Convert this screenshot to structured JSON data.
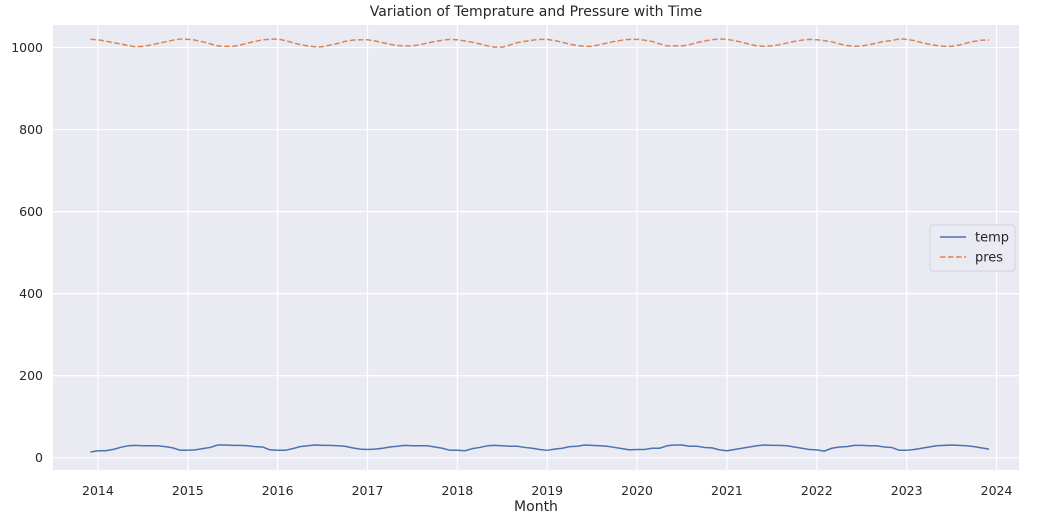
{
  "chart_data": {
    "type": "line",
    "title": "Variation of  Temprature and Pressure with Time",
    "xlabel": "Month",
    "ylabel": "",
    "x_ticks": [
      "2014",
      "2015",
      "2016",
      "2017",
      "2018",
      "2019",
      "2020",
      "2021",
      "2022",
      "2023",
      "2024"
    ],
    "y_ticks": [
      "0",
      "200",
      "400",
      "600",
      "800",
      "1000"
    ],
    "xlim": [
      "2013-07",
      "2024-04"
    ],
    "ylim": [
      -30,
      1055
    ],
    "grid": true,
    "legend_position": "center-right",
    "x": [
      "2013-12",
      "2014-01",
      "2014-02",
      "2014-03",
      "2014-04",
      "2014-05",
      "2014-06",
      "2014-07",
      "2014-08",
      "2014-09",
      "2014-10",
      "2014-11",
      "2014-12",
      "2015-01",
      "2015-02",
      "2015-03",
      "2015-04",
      "2015-05",
      "2015-06",
      "2015-07",
      "2015-08",
      "2015-09",
      "2015-10",
      "2015-11",
      "2015-12",
      "2016-01",
      "2016-02",
      "2016-03",
      "2016-04",
      "2016-05",
      "2016-06",
      "2016-07",
      "2016-08",
      "2016-09",
      "2016-10",
      "2016-11",
      "2016-12",
      "2017-01",
      "2017-02",
      "2017-03",
      "2017-04",
      "2017-05",
      "2017-06",
      "2017-07",
      "2017-08",
      "2017-09",
      "2017-10",
      "2017-11",
      "2017-12",
      "2018-01",
      "2018-02",
      "2018-03",
      "2018-04",
      "2018-05",
      "2018-06",
      "2018-07",
      "2018-08",
      "2018-09",
      "2018-10",
      "2018-11",
      "2018-12",
      "2019-01",
      "2019-02",
      "2019-03",
      "2019-04",
      "2019-05",
      "2019-06",
      "2019-07",
      "2019-08",
      "2019-09",
      "2019-10",
      "2019-11",
      "2019-12",
      "2020-01",
      "2020-02",
      "2020-03",
      "2020-04",
      "2020-05",
      "2020-06",
      "2020-07",
      "2020-08",
      "2020-09",
      "2020-10",
      "2020-11",
      "2020-12",
      "2021-01",
      "2021-02",
      "2021-03",
      "2021-04",
      "2021-05",
      "2021-06",
      "2021-07",
      "2021-08",
      "2021-09",
      "2021-10",
      "2021-11",
      "2021-12",
      "2022-01",
      "2022-02",
      "2022-03",
      "2022-04",
      "2022-05",
      "2022-06",
      "2022-07",
      "2022-08",
      "2022-09",
      "2022-10",
      "2022-11",
      "2022-12",
      "2023-01",
      "2023-02",
      "2023-03",
      "2023-04",
      "2023-05",
      "2023-06",
      "2023-07",
      "2023-08",
      "2023-09",
      "2023-10",
      "2023-11",
      "2023-12"
    ],
    "series": [
      {
        "name": "temp",
        "color": "#4c72b0",
        "dash": "solid",
        "values": [
          14,
          17,
          17,
          20,
          25,
          29,
          30,
          29,
          29,
          29,
          27,
          24,
          18,
          18,
          19,
          22,
          25,
          31,
          31,
          30,
          30,
          29,
          27,
          26,
          19,
          18,
          18,
          22,
          27,
          29,
          31,
          30,
          30,
          29,
          28,
          24,
          21,
          20,
          21,
          23,
          26,
          28,
          30,
          29,
          29,
          29,
          26,
          23,
          18,
          18,
          17,
          22,
          25,
          29,
          30,
          29,
          28,
          28,
          25,
          23,
          20,
          18,
          21,
          23,
          27,
          28,
          31,
          30,
          29,
          28,
          25,
          22,
          19,
          20,
          20,
          23,
          23,
          29,
          31,
          31,
          28,
          28,
          25,
          24,
          19,
          17,
          20,
          23,
          26,
          29,
          31,
          30,
          30,
          29,
          26,
          23,
          20,
          19,
          16,
          23,
          26,
          27,
          30,
          30,
          29,
          29,
          26,
          25,
          18,
          18,
          20,
          23,
          26,
          29,
          30,
          31,
          30,
          29,
          27,
          24,
          21
        ]
      },
      {
        "name": "pres",
        "color": "#dd8452",
        "dash": "dashed",
        "values": [
          1020,
          1019,
          1016,
          1012,
          1009,
          1005,
          1002,
          1003,
          1006,
          1010,
          1014,
          1018,
          1021,
          1020,
          1018,
          1014,
          1009,
          1004,
          1003,
          1003,
          1006,
          1011,
          1015,
          1019,
          1020,
          1021,
          1017,
          1012,
          1007,
          1004,
          1002,
          1002,
          1006,
          1010,
          1015,
          1018,
          1019,
          1019,
          1016,
          1012,
          1008,
          1005,
          1004,
          1004,
          1007,
          1011,
          1015,
          1018,
          1020,
          1019,
          1016,
          1013,
          1009,
          1004,
          1001,
          1001,
          1006,
          1012,
          1015,
          1018,
          1020,
          1020,
          1017,
          1013,
          1008,
          1005,
          1003,
          1003,
          1007,
          1011,
          1015,
          1018,
          1020,
          1020,
          1018,
          1015,
          1009,
          1004,
          1004,
          1004,
          1007,
          1012,
          1016,
          1019,
          1021,
          1020,
          1017,
          1013,
          1008,
          1004,
          1003,
          1004,
          1007,
          1011,
          1015,
          1018,
          1020,
          1019,
          1017,
          1014,
          1009,
          1005,
          1003,
          1004,
          1007,
          1011,
          1015,
          1017,
          1021,
          1020,
          1017,
          1012,
          1008,
          1005,
          1003,
          1003,
          1006,
          1011,
          1015,
          1018,
          1018
        ]
      }
    ]
  }
}
